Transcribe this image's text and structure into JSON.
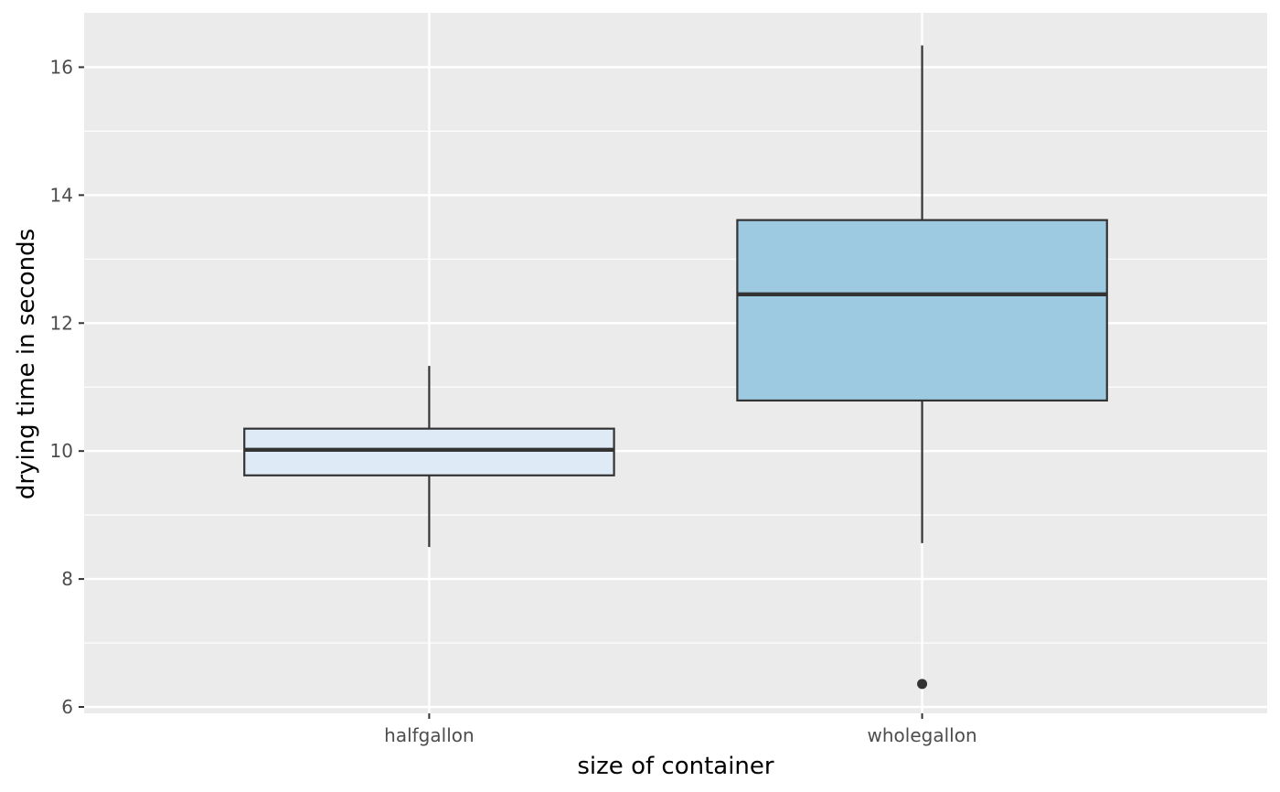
{
  "chart_data": {
    "type": "boxplot",
    "title": "",
    "xlabel": "size of container",
    "ylabel": "drying time in seconds",
    "categories": [
      "halfgallon",
      "wholegallon"
    ],
    "boxes": [
      {
        "category": "halfgallon",
        "whisker_low": 8.5,
        "q1": 9.62,
        "median": 10.02,
        "q3": 10.35,
        "whisker_high": 11.33,
        "outliers": [],
        "fill": "#deebf7"
      },
      {
        "category": "wholegallon",
        "whisker_low": 8.56,
        "q1": 10.79,
        "median": 12.45,
        "q3": 13.61,
        "whisker_high": 16.34,
        "outliers": [
          6.36
        ],
        "fill": "#9ecae1"
      }
    ],
    "ylim": [
      5.9,
      16.85
    ],
    "y_ticks": [
      6,
      8,
      10,
      12,
      14,
      16
    ],
    "y_tick_labels": [
      "6",
      "8",
      "10",
      "12",
      "14",
      "16"
    ],
    "grid": true,
    "legend": "none",
    "colors": {
      "panel_background": "#ebebeb",
      "grid_line": "#ffffff",
      "box_outline": "#333333"
    }
  }
}
